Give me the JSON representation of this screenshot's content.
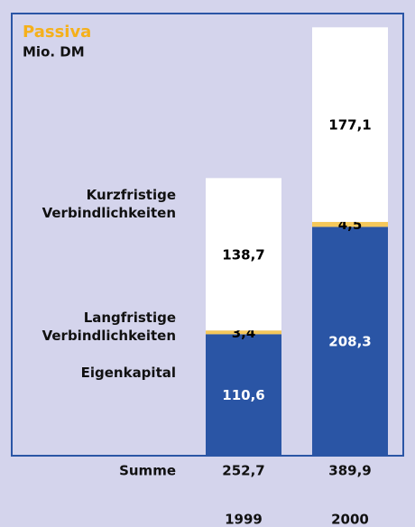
{
  "chart_data": {
    "type": "stacked_bar",
    "title": "Passiva",
    "subtitle": "Mio. DM",
    "categories": [
      "1999",
      "2000"
    ],
    "series": [
      {
        "name": "Eigenkapital",
        "color": "#2a55a5",
        "label_color": "#ffffff",
        "values": [
          110.6,
          208.3
        ],
        "value_labels": [
          "110,6",
          "208,3"
        ]
      },
      {
        "name": "Langfristige Verbindlichkeiten",
        "color": "#f5c85a",
        "label_color": "#000000",
        "values": [
          3.4,
          4.5
        ],
        "value_labels": [
          "3,4",
          "4,5"
        ]
      },
      {
        "name": "Kurzfristige Verbindlichkeiten",
        "color": "#ffffff",
        "label_color": "#000000",
        "values": [
          138.7,
          177.1
        ],
        "value_labels": [
          "138,7",
          "177,1"
        ]
      }
    ],
    "total_label": "Summe",
    "totals": [
      252.7,
      389.9
    ],
    "total_labels": [
      "252,7",
      "389,9"
    ],
    "ylim": [
      0,
      400
    ]
  }
}
